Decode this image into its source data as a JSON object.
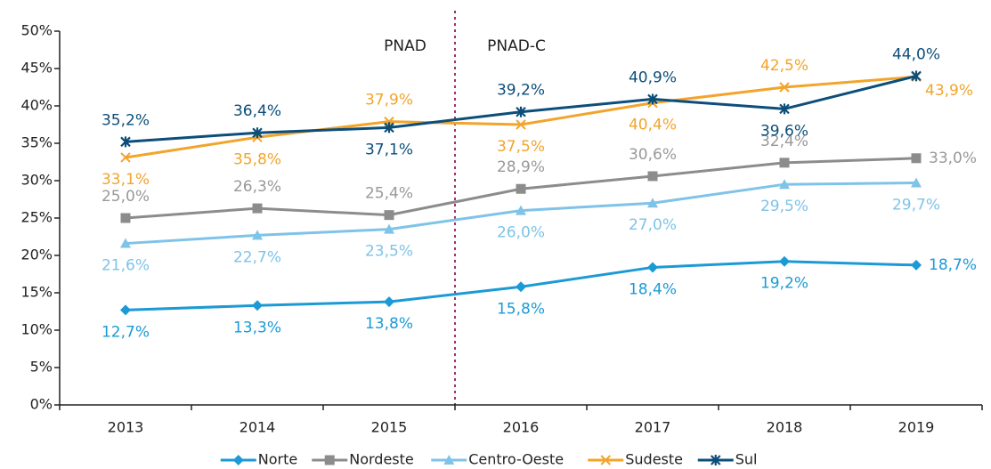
{
  "chart_data": {
    "type": "line",
    "categories": [
      "2013",
      "2014",
      "2015",
      "2016",
      "2017",
      "2018",
      "2019"
    ],
    "ylim": [
      0,
      50
    ],
    "yticks": [
      {
        "value": 0,
        "label": "0%"
      },
      {
        "value": 5,
        "label": "5%"
      },
      {
        "value": 10,
        "label": "10%"
      },
      {
        "value": 15,
        "label": "15%"
      },
      {
        "value": 20,
        "label": "20%"
      },
      {
        "value": 25,
        "label": "25%"
      },
      {
        "value": 30,
        "label": "30%"
      },
      {
        "value": 35,
        "label": "35%"
      },
      {
        "value": 40,
        "label": "40%"
      },
      {
        "value": 45,
        "label": "45%"
      },
      {
        "value": 50,
        "label": "50%"
      }
    ],
    "grid": false,
    "legend": "bottom",
    "annotations": [
      "PNAD",
      "PNAD-C"
    ],
    "series": [
      {
        "name": "Norte",
        "color": "#1b9ad6",
        "marker": "diamond",
        "values": [
          12.7,
          13.3,
          13.8,
          15.8,
          18.4,
          19.2,
          18.7
        ],
        "value_labels": [
          "12,7%",
          "13,3%",
          "13,8%",
          "15,8%",
          "18,4%",
          "19,2%",
          "18,7%"
        ]
      },
      {
        "name": "Nordeste",
        "color": "#8c8c8c",
        "marker": "square",
        "values": [
          25.0,
          26.3,
          25.4,
          28.9,
          30.6,
          32.4,
          33.0
        ],
        "value_labels": [
          "25,0%",
          "26,3%",
          "25,4%",
          "28,9%",
          "30,6%",
          "32,4%",
          "33,0%"
        ]
      },
      {
        "name": "Centro-Oeste",
        "color": "#7ec3e8",
        "marker": "triangle",
        "values": [
          21.6,
          22.7,
          23.5,
          26.0,
          27.0,
          29.5,
          29.7
        ],
        "value_labels": [
          "21,6%",
          "22,7%",
          "23,5%",
          "26,0%",
          "27,0%",
          "29,5%",
          "29,7%"
        ]
      },
      {
        "name": "Sudeste",
        "color": "#f2a42b",
        "marker": "x",
        "values": [
          33.1,
          35.8,
          37.9,
          37.5,
          40.4,
          42.5,
          43.9
        ],
        "value_labels": [
          "33,1%",
          "35,8%",
          "37,9%",
          "37,5%",
          "40,4%",
          "42,5%",
          "43,9%"
        ]
      },
      {
        "name": "Sul",
        "color": "#0c4e7a",
        "marker": "star",
        "values": [
          35.2,
          36.4,
          37.1,
          39.2,
          40.9,
          39.6,
          44.0
        ],
        "value_labels": [
          "35,2%",
          "36,4%",
          "37,1%",
          "39,2%",
          "40,9%",
          "39,6%",
          "44,0%"
        ]
      }
    ]
  }
}
